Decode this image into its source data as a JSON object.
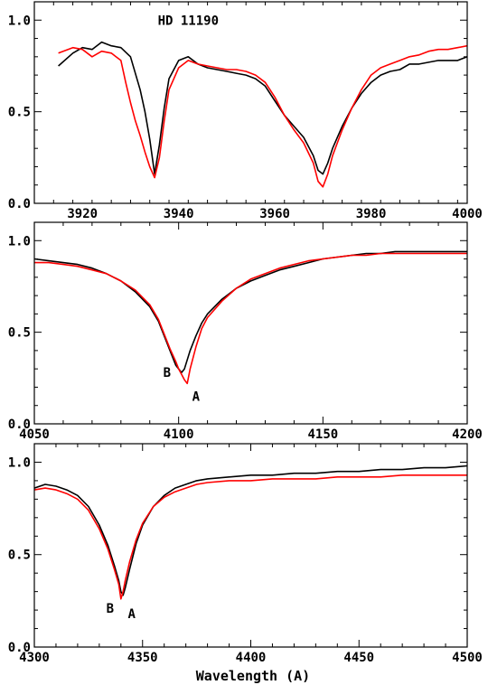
{
  "figure": {
    "xlabel": "Wavelength (A)"
  },
  "chart_data": [
    {
      "type": "line",
      "title": "HD 11190",
      "xlim": [
        3910,
        4000
      ],
      "ylim": [
        0.0,
        1.1
      ],
      "xticks": [
        3920,
        3940,
        3960,
        3980,
        4000
      ],
      "xtick_labels": [
        "3920",
        "3940",
        "3960",
        "3980",
        "4000"
      ],
      "yticks": [
        0.0,
        0.5,
        1.0
      ],
      "ytick_labels": [
        "0.0",
        "0.5",
        "1.0"
      ],
      "annotations": [],
      "series": [
        {
          "color": "#000000",
          "x": [
            3915,
            3918,
            3920,
            3922,
            3924,
            3926,
            3928,
            3930,
            3932,
            3933,
            3934,
            3935,
            3936,
            3937,
            3938,
            3940,
            3942,
            3944,
            3946,
            3948,
            3950,
            3952,
            3954,
            3956,
            3958,
            3960,
            3962,
            3964,
            3966,
            3968,
            3969,
            3970,
            3971,
            3972,
            3974,
            3976,
            3978,
            3980,
            3982,
            3984,
            3986,
            3988,
            3990,
            3992,
            3994,
            3996,
            3998,
            4000
          ],
          "y": [
            0.75,
            0.82,
            0.85,
            0.84,
            0.88,
            0.86,
            0.85,
            0.8,
            0.62,
            0.5,
            0.35,
            0.16,
            0.32,
            0.52,
            0.68,
            0.78,
            0.8,
            0.76,
            0.74,
            0.73,
            0.72,
            0.71,
            0.7,
            0.68,
            0.64,
            0.56,
            0.48,
            0.42,
            0.36,
            0.26,
            0.18,
            0.16,
            0.22,
            0.3,
            0.42,
            0.52,
            0.6,
            0.66,
            0.7,
            0.72,
            0.73,
            0.76,
            0.76,
            0.77,
            0.78,
            0.78,
            0.78,
            0.8
          ]
        },
        {
          "color": "#ff0000",
          "x": [
            3915,
            3918,
            3920,
            3922,
            3924,
            3926,
            3928,
            3929,
            3930,
            3931,
            3932,
            3933,
            3934,
            3935,
            3936,
            3937,
            3938,
            3940,
            3942,
            3944,
            3946,
            3948,
            3950,
            3952,
            3954,
            3956,
            3958,
            3960,
            3962,
            3964,
            3966,
            3968,
            3969,
            3970,
            3971,
            3972,
            3974,
            3976,
            3978,
            3980,
            3982,
            3984,
            3986,
            3988,
            3990,
            3992,
            3994,
            3996,
            3998,
            4000
          ],
          "y": [
            0.82,
            0.85,
            0.84,
            0.8,
            0.83,
            0.82,
            0.78,
            0.66,
            0.55,
            0.45,
            0.37,
            0.28,
            0.2,
            0.14,
            0.25,
            0.45,
            0.62,
            0.74,
            0.78,
            0.76,
            0.75,
            0.74,
            0.73,
            0.73,
            0.72,
            0.7,
            0.66,
            0.58,
            0.48,
            0.4,
            0.33,
            0.22,
            0.12,
            0.09,
            0.16,
            0.26,
            0.4,
            0.52,
            0.62,
            0.7,
            0.74,
            0.76,
            0.78,
            0.8,
            0.81,
            0.83,
            0.84,
            0.84,
            0.85,
            0.86
          ]
        }
      ]
    },
    {
      "type": "line",
      "title": "",
      "xlim": [
        4050,
        4200
      ],
      "ylim": [
        0.0,
        1.1
      ],
      "xticks": [
        4050,
        4100,
        4150,
        4200
      ],
      "xtick_labels": [
        "4050",
        "4100",
        "4150",
        "4200"
      ],
      "yticks": [
        0.0,
        0.5,
        1.0
      ],
      "ytick_labels": [
        "0.0",
        "0.5",
        "1.0"
      ],
      "annotations": [
        {
          "text": "B",
          "x": 4096,
          "y": 0.28
        },
        {
          "text": "A",
          "x": 4106,
          "y": 0.15
        }
      ],
      "series": [
        {
          "color": "#000000",
          "x": [
            4050,
            4055,
            4060,
            4065,
            4070,
            4075,
            4080,
            4085,
            4090,
            4093,
            4095,
            4097,
            4099,
            4100,
            4101,
            4102,
            4104,
            4106,
            4108,
            4110,
            4115,
            4120,
            4125,
            4130,
            4135,
            4140,
            4145,
            4150,
            4155,
            4160,
            4165,
            4170,
            4175,
            4180,
            4185,
            4190,
            4195,
            4200
          ],
          "y": [
            0.9,
            0.89,
            0.88,
            0.87,
            0.85,
            0.82,
            0.78,
            0.72,
            0.64,
            0.56,
            0.48,
            0.4,
            0.32,
            0.3,
            0.28,
            0.3,
            0.4,
            0.48,
            0.55,
            0.6,
            0.68,
            0.74,
            0.78,
            0.81,
            0.84,
            0.86,
            0.88,
            0.9,
            0.91,
            0.92,
            0.93,
            0.93,
            0.94,
            0.94,
            0.94,
            0.94,
            0.94,
            0.94
          ]
        },
        {
          "color": "#ff0000",
          "x": [
            4050,
            4055,
            4060,
            4065,
            4070,
            4075,
            4080,
            4085,
            4090,
            4093,
            4095,
            4097,
            4099,
            4100,
            4101,
            4102,
            4103,
            4104,
            4106,
            4108,
            4110,
            4115,
            4120,
            4125,
            4130,
            4135,
            4140,
            4145,
            4150,
            4155,
            4160,
            4165,
            4170,
            4175,
            4180,
            4185,
            4190,
            4195,
            4200
          ],
          "y": [
            0.88,
            0.88,
            0.87,
            0.86,
            0.84,
            0.82,
            0.78,
            0.73,
            0.65,
            0.57,
            0.49,
            0.41,
            0.34,
            0.3,
            0.27,
            0.24,
            0.22,
            0.3,
            0.42,
            0.52,
            0.58,
            0.67,
            0.74,
            0.79,
            0.82,
            0.85,
            0.87,
            0.89,
            0.9,
            0.91,
            0.92,
            0.92,
            0.93,
            0.93,
            0.93,
            0.93,
            0.93,
            0.93,
            0.93
          ]
        }
      ]
    },
    {
      "type": "line",
      "title": "",
      "xlim": [
        4300,
        4500
      ],
      "ylim": [
        0.0,
        1.1
      ],
      "xticks": [
        4300,
        4350,
        4400,
        4450,
        4500
      ],
      "xtick_labels": [
        "4300",
        "4350",
        "4400",
        "4450",
        "4500"
      ],
      "yticks": [
        0.0,
        0.5,
        1.0
      ],
      "ytick_labels": [
        "0.0",
        "0.5",
        "1.0"
      ],
      "annotations": [
        {
          "text": "B",
          "x": 4335,
          "y": 0.21
        },
        {
          "text": "A",
          "x": 4345,
          "y": 0.18
        }
      ],
      "series": [
        {
          "color": "#000000",
          "x": [
            4300,
            4305,
            4310,
            4315,
            4320,
            4325,
            4330,
            4334,
            4337,
            4339,
            4340,
            4341,
            4342,
            4344,
            4347,
            4350,
            4355,
            4360,
            4365,
            4370,
            4375,
            4380,
            4390,
            4400,
            4410,
            4420,
            4430,
            4440,
            4450,
            4460,
            4470,
            4480,
            4490,
            4500
          ],
          "y": [
            0.86,
            0.88,
            0.87,
            0.85,
            0.82,
            0.76,
            0.66,
            0.55,
            0.44,
            0.36,
            0.3,
            0.28,
            0.32,
            0.42,
            0.56,
            0.66,
            0.76,
            0.82,
            0.86,
            0.88,
            0.9,
            0.91,
            0.92,
            0.93,
            0.93,
            0.94,
            0.94,
            0.95,
            0.95,
            0.96,
            0.96,
            0.97,
            0.97,
            0.98
          ]
        },
        {
          "color": "#ff0000",
          "x": [
            4300,
            4305,
            4310,
            4315,
            4320,
            4325,
            4330,
            4334,
            4337,
            4339,
            4340,
            4341,
            4342,
            4344,
            4347,
            4350,
            4355,
            4360,
            4365,
            4370,
            4375,
            4380,
            4390,
            4400,
            4410,
            4420,
            4430,
            4440,
            4450,
            4460,
            4470,
            4480,
            4490,
            4500
          ],
          "y": [
            0.85,
            0.86,
            0.85,
            0.83,
            0.8,
            0.74,
            0.64,
            0.53,
            0.42,
            0.34,
            0.26,
            0.3,
            0.36,
            0.46,
            0.58,
            0.67,
            0.76,
            0.81,
            0.84,
            0.86,
            0.88,
            0.89,
            0.9,
            0.9,
            0.91,
            0.91,
            0.91,
            0.92,
            0.92,
            0.92,
            0.93,
            0.93,
            0.93,
            0.93
          ]
        }
      ]
    }
  ]
}
